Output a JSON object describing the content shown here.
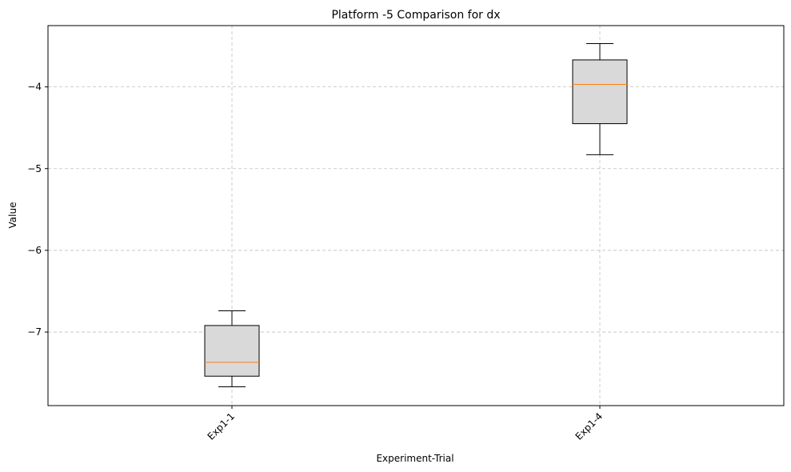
{
  "chart_data": {
    "type": "boxplot",
    "title": "Platform -5 Comparison for dx",
    "xlabel": "Experiment-Trial",
    "ylabel": "Value",
    "categories": [
      "Exp1-1",
      "Exp1-4"
    ],
    "boxes": [
      {
        "name": "Exp1-1",
        "whisker_low": -7.67,
        "q1": -7.54,
        "median": -7.37,
        "q3": -6.92,
        "whisker_high": -6.74
      },
      {
        "name": "Exp1-4",
        "whisker_low": -4.83,
        "q1": -4.45,
        "median": -3.97,
        "q3": -3.67,
        "whisker_high": -3.47
      }
    ],
    "ylim": [
      -7.9,
      -3.25
    ],
    "yticks": [
      -7,
      -6,
      -5,
      -4
    ],
    "ytick_labels": [
      "−7",
      "−6",
      "−5",
      "−4"
    ],
    "grid": true,
    "colors": {
      "box_fill": "#d9d9d9",
      "box_edge": "#000000",
      "median": "#ff7f0e",
      "grid": "#b0b0b0"
    }
  }
}
